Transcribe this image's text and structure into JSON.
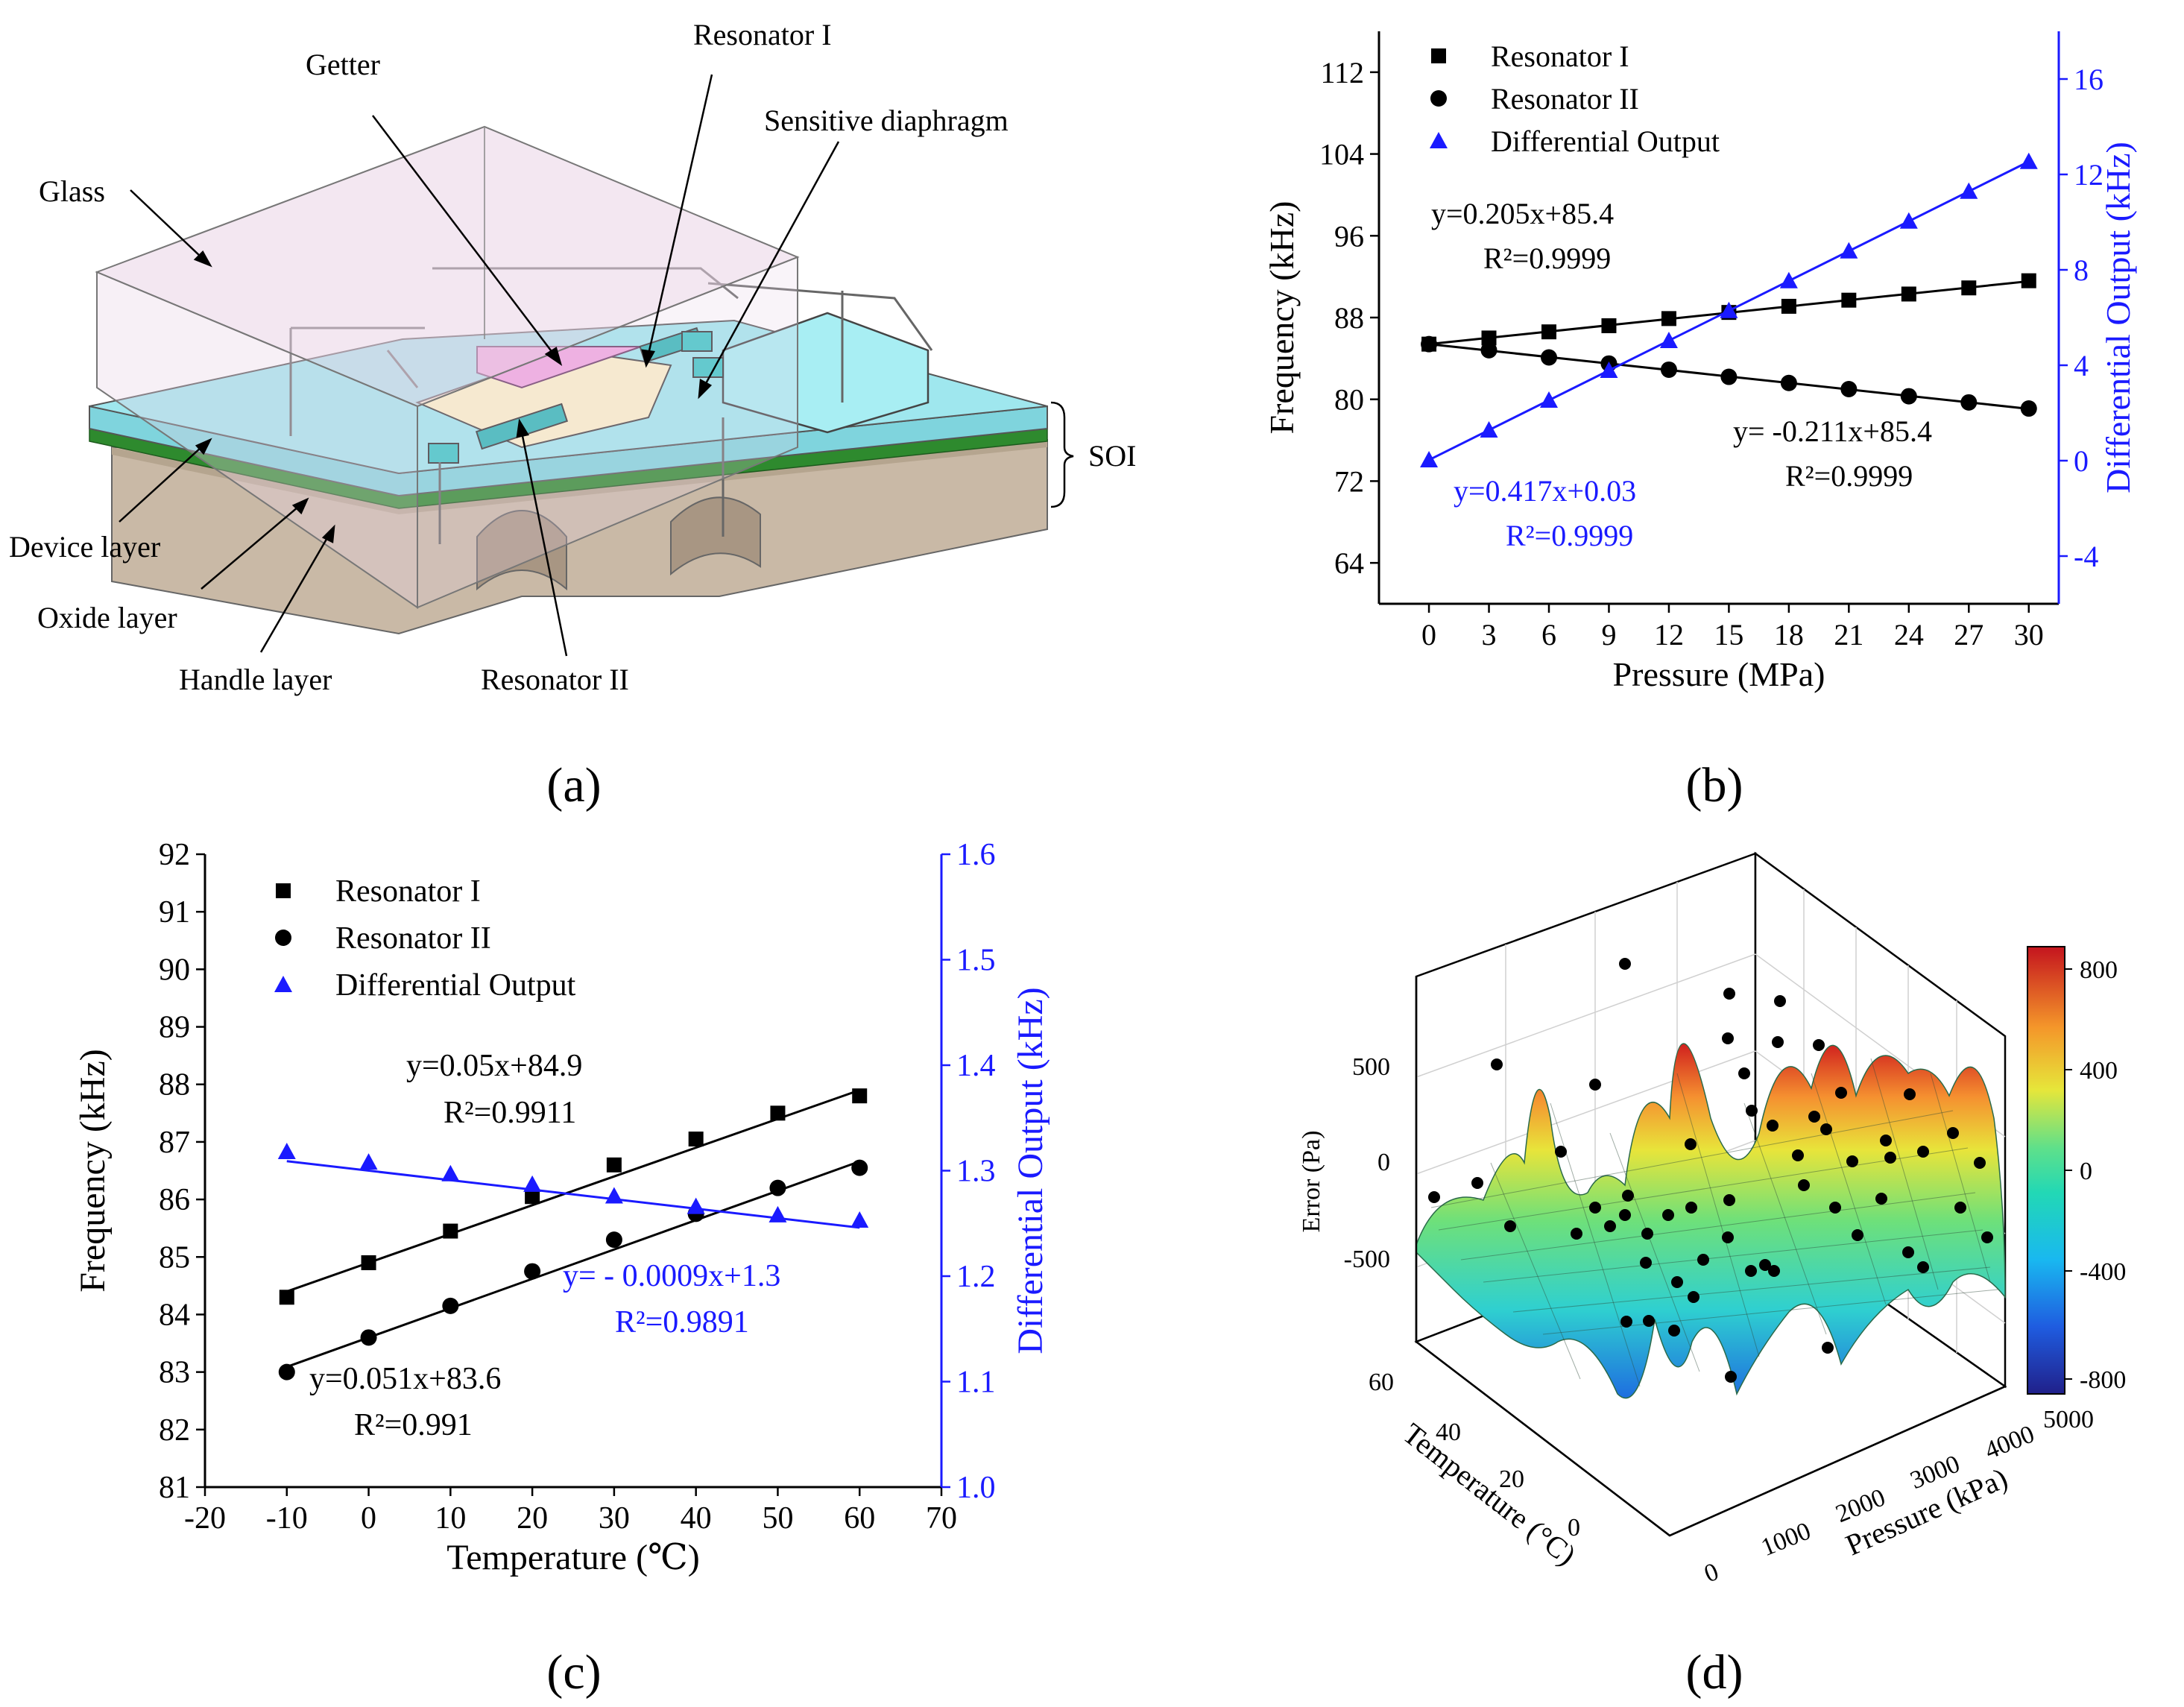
{
  "panel_a": {
    "label": "(a)",
    "callouts": {
      "glass": "Glass",
      "getter": "Getter",
      "resonator_1": "Resonator I",
      "sensitive_diaphragm": "Sensitive diaphragm",
      "soi": "SOI",
      "device_layer": "Device layer",
      "oxide_layer": "Oxide layer",
      "handle_layer": "Handle layer",
      "resonator_2": "Resonator II"
    },
    "colors": {
      "glass": "#e9d3e6",
      "device": "#9fe7ee",
      "oxide": "#2e8a2e",
      "handle": "#c9b9a6",
      "getter": "#f0a6e0"
    }
  },
  "panel_b": {
    "label": "(b)"
  },
  "panel_c": {
    "label": "(c)"
  },
  "panel_d": {
    "label": "(d)",
    "zlabel": "Error (Pa)",
    "xlabel": "Pressure (kPa)",
    "ylabel": "Temperature (°C)",
    "zticks": [
      "500",
      "0",
      "-500"
    ],
    "xticks": [
      "0",
      "1000",
      "2000",
      "3000",
      "4000",
      "5000"
    ],
    "yticks": [
      "60",
      "40",
      "20",
      "0"
    ],
    "colorbar_ticks": [
      "800",
      "400",
      "0",
      "-400",
      "-800"
    ]
  },
  "chart_data": [
    {
      "id": "b",
      "type": "line",
      "xlabel": "Pressure (MPa)",
      "ylabel": "Frequency (kHz)",
      "y2label": "Differential Output (kHz)",
      "x": [
        0,
        3,
        6,
        9,
        12,
        15,
        18,
        21,
        24,
        27,
        30
      ],
      "xlim": [
        -2.5,
        31.5
      ],
      "ylim": [
        60,
        116
      ],
      "y2lim": [
        -6,
        18
      ],
      "xticks": [
        0,
        3,
        6,
        9,
        12,
        15,
        18,
        21,
        24,
        27,
        30
      ],
      "yticks": [
        64,
        72,
        80,
        88,
        96,
        104,
        112
      ],
      "y2ticks": [
        -4,
        0,
        4,
        8,
        12,
        16
      ],
      "series": [
        {
          "name": "Resonator I",
          "axis": "left",
          "marker": "square",
          "color": "#000000",
          "values": [
            85.4,
            86.0,
            86.6,
            87.2,
            87.9,
            88.5,
            89.1,
            89.7,
            90.3,
            90.9,
            91.6
          ],
          "fit": [
            0.205,
            85.4
          ]
        },
        {
          "name": "Resonator II",
          "axis": "left",
          "marker": "circle",
          "color": "#000000",
          "values": [
            85.4,
            84.8,
            84.1,
            83.5,
            82.9,
            82.2,
            81.6,
            81.0,
            80.3,
            79.7,
            79.1
          ],
          "fit": [
            -0.211,
            85.4
          ]
        },
        {
          "name": "Differential Output",
          "axis": "right",
          "marker": "triangle",
          "color": "#1a1aff",
          "values": [
            0.03,
            1.28,
            2.53,
            3.78,
            5.03,
            6.29,
            7.54,
            8.79,
            10.04,
            11.29,
            12.54
          ],
          "fit": [
            0.417,
            0.03
          ]
        }
      ],
      "annotations": [
        {
          "eq": "y=0.205x+85.4",
          "r2": "R²=0.9999",
          "color": "#000000"
        },
        {
          "eq": "y= -0.211x+85.4",
          "r2": "R²=0.9999",
          "color": "#000000"
        },
        {
          "eq": "y=0.417x+0.03",
          "r2": "R²=0.9999",
          "color": "#1a1aff"
        }
      ]
    },
    {
      "id": "c",
      "type": "line",
      "xlabel": "Temperature (℃)",
      "ylabel": "Frequency (kHz)",
      "y2label": "Differential Output (kHz)",
      "x": [
        -10,
        0,
        10,
        20,
        30,
        40,
        50,
        60
      ],
      "xlim": [
        -20,
        70
      ],
      "ylim": [
        81,
        92
      ],
      "y2lim": [
        1.0,
        1.6
      ],
      "xticks": [
        -20,
        -10,
        0,
        10,
        20,
        30,
        40,
        50,
        60,
        70
      ],
      "yticks": [
        81,
        82,
        83,
        84,
        85,
        86,
        87,
        88,
        89,
        90,
        91,
        92
      ],
      "y2ticks": [
        1.0,
        1.1,
        1.2,
        1.3,
        1.4,
        1.5,
        1.6
      ],
      "series": [
        {
          "name": "Resonator I",
          "axis": "left",
          "marker": "square",
          "color": "#000000",
          "values": [
            84.3,
            84.9,
            85.45,
            86.05,
            86.6,
            87.05,
            87.5,
            87.8
          ],
          "fit": [
            0.05,
            84.9
          ]
        },
        {
          "name": "Resonator II",
          "axis": "left",
          "marker": "circle",
          "color": "#000000",
          "values": [
            83.0,
            83.6,
            84.15,
            84.75,
            85.3,
            85.75,
            86.2,
            86.55
          ],
          "fit": [
            0.051,
            83.6
          ]
        },
        {
          "name": "Differential Output",
          "axis": "right",
          "marker": "triangle",
          "color": "#1a1aff",
          "values": [
            1.318,
            1.308,
            1.297,
            1.287,
            1.276,
            1.266,
            1.258,
            1.253
          ],
          "fit": [
            -0.0009,
            1.3
          ]
        }
      ],
      "annotations": [
        {
          "eq": "y=0.05x+84.9",
          "r2": "R²=0.9911",
          "color": "#000000"
        },
        {
          "eq": "y=0.051x+83.6",
          "r2": "R²=0.991",
          "color": "#000000"
        },
        {
          "eq": "y= - 0.0009x+1.3",
          "r2": "R²=0.9891",
          "color": "#1a1aff"
        }
      ]
    }
  ]
}
